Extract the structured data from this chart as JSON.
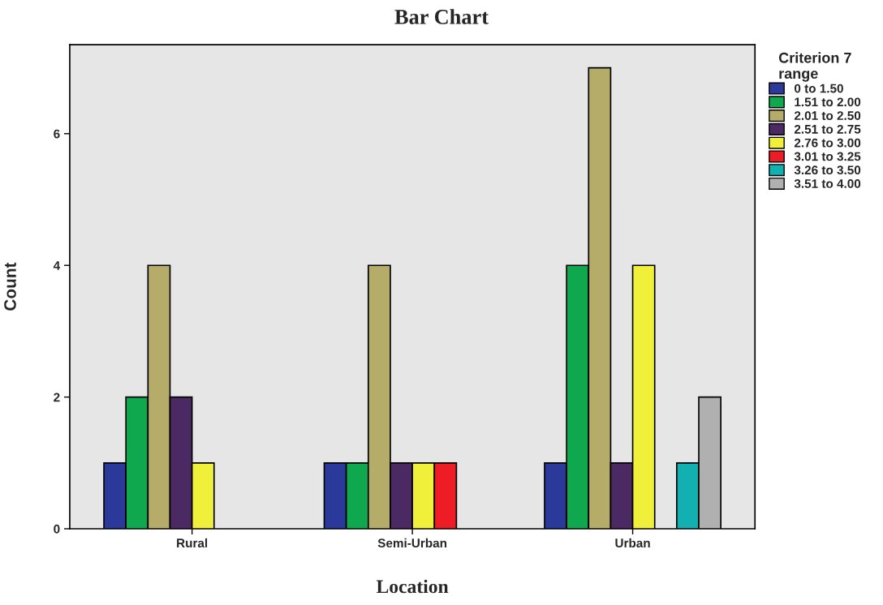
{
  "chart_data": {
    "type": "bar",
    "title": "Bar Chart",
    "xlabel": "Location",
    "ylabel": "Count",
    "legend_title": "Criterion 7\nrange",
    "categories": [
      "Rural",
      "Semi-Urban",
      "Urban"
    ],
    "series": [
      {
        "name": "0 to 1.50",
        "color": "#2b3a9a",
        "values": [
          1,
          1,
          1
        ]
      },
      {
        "name": "1.51 to 2.00",
        "color": "#0fa84f",
        "values": [
          2,
          1,
          4
        ]
      },
      {
        "name": "2.01 to 2.50",
        "color": "#b5ac6a",
        "values": [
          4,
          4,
          7
        ]
      },
      {
        "name": "2.51 to 2.75",
        "color": "#4b2a63",
        "values": [
          2,
          1,
          1
        ]
      },
      {
        "name": "2.76 to 3.00",
        "color": "#f0f03a",
        "values": [
          1,
          1,
          4
        ]
      },
      {
        "name": "3.01 to 3.25",
        "color": "#ee1c24",
        "values": [
          null,
          1,
          null
        ]
      },
      {
        "name": "3.26 to 3.50",
        "color": "#12b0b0",
        "values": [
          null,
          null,
          1
        ]
      },
      {
        "name": "3.51 to 4.00",
        "color": "#b0b0b0",
        "values": [
          null,
          null,
          2
        ]
      }
    ],
    "ylim": [
      0,
      7.35
    ],
    "yticks": [
      0,
      2,
      4,
      6
    ],
    "grid": false,
    "legend": "right"
  }
}
